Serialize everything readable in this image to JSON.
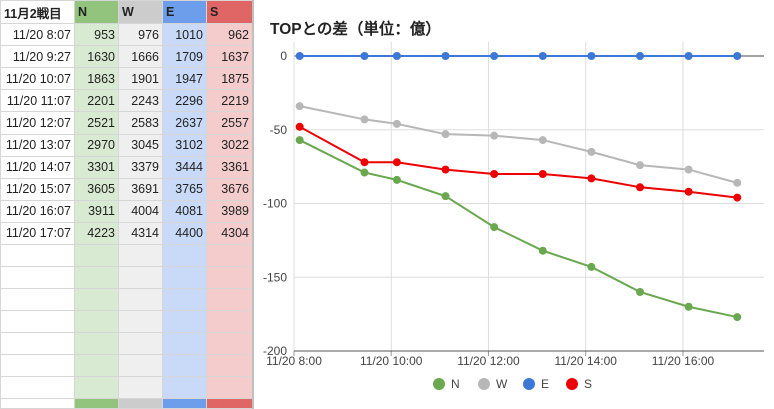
{
  "sheet": {
    "header": {
      "time": "11月2戦目",
      "n": "N",
      "w": "W",
      "e": "E",
      "s": "S"
    },
    "rows": [
      {
        "time": "11/20 8:07",
        "n": "953",
        "w": "976",
        "e": "1010",
        "s": "962"
      },
      {
        "time": "11/20 9:27",
        "n": "1630",
        "w": "1666",
        "e": "1709",
        "s": "1637"
      },
      {
        "time": "11/20 10:07",
        "n": "1863",
        "w": "1901",
        "e": "1947",
        "s": "1875"
      },
      {
        "time": "11/20 11:07",
        "n": "2201",
        "w": "2243",
        "e": "2296",
        "s": "2219"
      },
      {
        "time": "11/20 12:07",
        "n": "2521",
        "w": "2583",
        "e": "2637",
        "s": "2557"
      },
      {
        "time": "11/20 13:07",
        "n": "2970",
        "w": "3045",
        "e": "3102",
        "s": "3022"
      },
      {
        "time": "11/20 14:07",
        "n": "3301",
        "w": "3379",
        "e": "3444",
        "s": "3361"
      },
      {
        "time": "11/20 15:07",
        "n": "3605",
        "w": "3691",
        "e": "3765",
        "s": "3676"
      },
      {
        "time": "11/20 16:07",
        "n": "3911",
        "w": "4004",
        "e": "4081",
        "s": "3989"
      },
      {
        "time": "11/20 17:07",
        "n": "4223",
        "w": "4314",
        "e": "4400",
        "s": "4304"
      }
    ],
    "header_colors": {
      "n": "#93c47d",
      "w": "#cccccc",
      "e": "#6d9eeb",
      "s": "#e06666"
    },
    "fill_colors": {
      "n": "#d9ead3",
      "w": "#efefef",
      "e": "#c9daf8",
      "s": "#f4cccc"
    }
  },
  "chart_data": {
    "type": "line",
    "title": "TOPとの差（単位：億）",
    "x": [
      "11/20 8:07",
      "11/20 9:27",
      "11/20 10:07",
      "11/20 11:07",
      "11/20 12:07",
      "11/20 13:07",
      "11/20 14:07",
      "11/20 15:07",
      "11/20 16:07",
      "11/20 17:07"
    ],
    "xticks": [
      "11/20 8:00",
      "11/20 10:00",
      "11/20 12:00",
      "11/20 14:00",
      "11/20 16:00"
    ],
    "ylim": [
      -200,
      0
    ],
    "yticks": [
      0,
      -50,
      -100,
      -150,
      -200
    ],
    "grid": true,
    "legend": "bottom",
    "series": [
      {
        "name": "N",
        "color": "#6aa84f",
        "values": [
          -57,
          -79,
          -84,
          -95,
          -116,
          -132,
          -143,
          -160,
          -170,
          -177
        ]
      },
      {
        "name": "W",
        "color": "#b7b7b7",
        "values": [
          -34,
          -43,
          -46,
          -53,
          -54,
          -57,
          -65,
          -74,
          -77,
          -86
        ]
      },
      {
        "name": "E",
        "color": "#3c78d8",
        "values": [
          0,
          0,
          0,
          0,
          0,
          0,
          0,
          0,
          0,
          0
        ]
      },
      {
        "name": "S",
        "color": "#ee0000",
        "values": [
          -48,
          -72,
          -72,
          -77,
          -80,
          -80,
          -83,
          -89,
          -92,
          -96
        ]
      }
    ]
  }
}
